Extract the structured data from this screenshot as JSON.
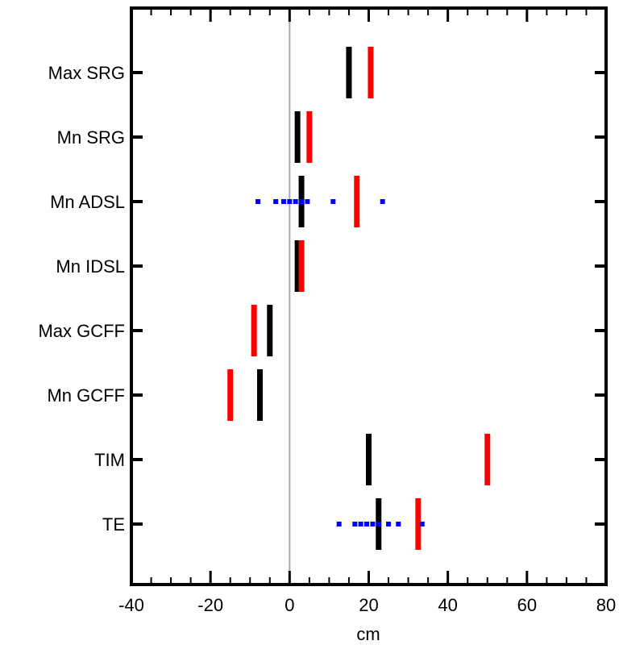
{
  "chart_data": {
    "type": "scatter",
    "xlabel": "cm",
    "xlim": [
      -40,
      80
    ],
    "x_ticks": [
      "-40",
      "-20",
      "0",
      "20",
      "40",
      "60",
      "80"
    ],
    "x_tick_values": [
      -40,
      -20,
      0,
      20,
      40,
      60,
      80
    ],
    "x_minor_step": 5,
    "zero_line": 0,
    "categories": [
      "Max SRG",
      "Mn SRG",
      "Mn ADSL",
      "Mn IDSL",
      "Max GCFF",
      "Mn GCFF",
      "TIM",
      "TE"
    ],
    "series": [
      {
        "color": "#000000",
        "marker": "vertical-bar",
        "values": [
          15,
          2,
          3,
          2,
          -5,
          -7.5,
          20,
          22.5
        ]
      },
      {
        "color": "#ff0000",
        "marker": "vertical-bar",
        "values": [
          20.5,
          5,
          17,
          3,
          -9,
          -15,
          50,
          32.5
        ]
      },
      {
        "color": "#0000ff",
        "marker": "dot",
        "points": [
          {
            "category": "Mn ADSL",
            "x": -8
          },
          {
            "category": "Mn ADSL",
            "x": -3.5
          },
          {
            "category": "Mn ADSL",
            "x": -1.5
          },
          {
            "category": "Mn ADSL",
            "x": 0
          },
          {
            "category": "Mn ADSL",
            "x": 1.5
          },
          {
            "category": "Mn ADSL",
            "x": 3
          },
          {
            "category": "Mn ADSL",
            "x": 4.5
          },
          {
            "category": "Mn ADSL",
            "x": 11
          },
          {
            "category": "Mn ADSL",
            "x": 23.5
          },
          {
            "category": "TE",
            "x": 12.5
          },
          {
            "category": "TE",
            "x": 16.5
          },
          {
            "category": "TE",
            "x": 18
          },
          {
            "category": "TE",
            "x": 19.5
          },
          {
            "category": "TE",
            "x": 21
          },
          {
            "category": "TE",
            "x": 22.5
          },
          {
            "category": "TE",
            "x": 25
          },
          {
            "category": "TE",
            "x": 27.5
          },
          {
            "category": "TE",
            "x": 33.5
          }
        ]
      }
    ],
    "colors": {
      "axis": "#000000",
      "zero_line": "#aaaaaa"
    }
  }
}
